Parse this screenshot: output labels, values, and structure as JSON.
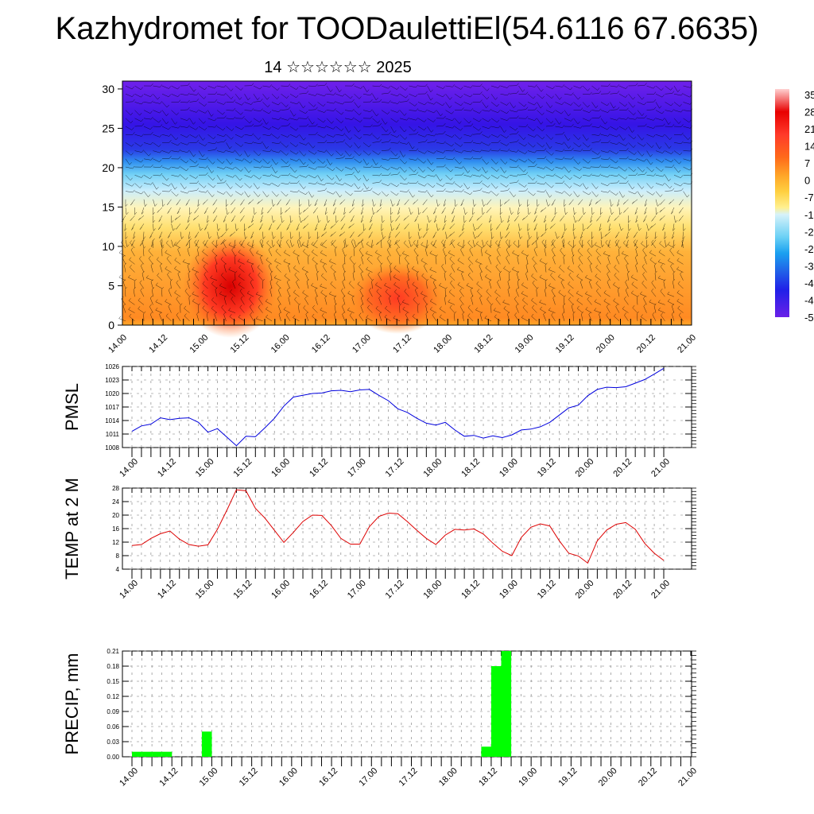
{
  "header": {
    "title": "Kazhydromet for TOODaulettiEl(54.6116 67.6635)",
    "subtitle": "14 ☆☆☆☆☆☆ 2025"
  },
  "chart_data": [
    {
      "type": "heatmap",
      "y_ticks": [
        "0",
        "5",
        "10",
        "15",
        "20",
        "25",
        "30"
      ],
      "ylim": [
        0,
        31
      ],
      "x_ticks": [
        "14.00",
        "14.12",
        "15.00",
        "15.12",
        "16.00",
        "16.12",
        "17.00",
        "17.12",
        "18.00",
        "18.12",
        "19.00",
        "19.12",
        "20.00",
        "20.12",
        "21.00"
      ],
      "colorbar_labels": [
        "35",
        "28",
        "21",
        "14",
        "7",
        "0",
        "-7",
        "-1",
        "-2",
        "-2",
        "-3",
        "-4",
        "-4",
        "-5"
      ],
      "colorbar_colors": [
        "#ffd0d0",
        "#e80000",
        "#ff3a2a",
        "#ff6a1a",
        "#ffa628",
        "#ffd040",
        "#fff090",
        "#d6f2fa",
        "#6ad0f5",
        "#1aa0f0",
        "#2060e8",
        "#2020e8",
        "#4010e8",
        "#6a20e8"
      ],
      "grid": "wind barbs overlaid"
    },
    {
      "type": "line",
      "ylabel": "PMSL",
      "y_ticks": [
        1008,
        1011,
        1014,
        1017,
        1020,
        1023,
        1026
      ],
      "ylim": [
        1008,
        1026
      ],
      "x_ticks": [
        "14.00",
        "14.12",
        "15.00",
        "15.12",
        "16.00",
        "16.12",
        "17.00",
        "17.12",
        "18.00",
        "18.12",
        "19.00",
        "19.12",
        "20.00",
        "20.12",
        "21.00"
      ],
      "color": "#0000dd",
      "series": [
        {
          "values": [
            1011.6,
            1012.8,
            1013.2,
            1014.6,
            1014.2,
            1014.5,
            1014.6,
            1013.6,
            1011.4,
            1012.2,
            1010.3,
            1008.4,
            1010.5,
            1010.4,
            1012.4,
            1014.5,
            1017.2,
            1019.2,
            1019.6,
            1020.0,
            1020.1,
            1020.6,
            1020.7,
            1020.4,
            1020.8,
            1020.9,
            1019.6,
            1018.4,
            1016.6,
            1015.8,
            1014.5,
            1013.4,
            1013.0,
            1013.6,
            1011.9,
            1010.5,
            1010.7,
            1010.1,
            1010.6,
            1010.2,
            1010.8,
            1011.9,
            1012.1,
            1012.6,
            1013.6,
            1015.2,
            1016.8,
            1017.4,
            1019.5,
            1020.9,
            1021.4,
            1021.3,
            1021.5,
            1022.3,
            1023.1,
            1024.3,
            1025.6
          ]
        }
      ]
    },
    {
      "type": "line",
      "ylabel": "TEMP at 2 M",
      "y_ticks": [
        4,
        8,
        12,
        16,
        20,
        24,
        28
      ],
      "ylim": [
        4,
        28
      ],
      "x_ticks": [
        "14.00",
        "14.12",
        "15.00",
        "15.12",
        "16.00",
        "16.12",
        "17.00",
        "17.12",
        "18.00",
        "18.12",
        "19.00",
        "19.12",
        "20.00",
        "20.12",
        "21.00"
      ],
      "color": "#dd0000",
      "series": [
        {
          "values": [
            11.0,
            11.3,
            13.1,
            14.5,
            15.3,
            12.9,
            11.3,
            10.8,
            11.2,
            15.8,
            21.5,
            27.5,
            27.2,
            22.0,
            19.1,
            15.5,
            11.9,
            14.9,
            18.1,
            20.0,
            19.9,
            16.9,
            13.1,
            11.4,
            11.4,
            16.6,
            19.6,
            20.6,
            20.4,
            18.1,
            15.5,
            13.1,
            11.3,
            14.1,
            15.8,
            15.6,
            15.9,
            14.4,
            11.7,
            9.3,
            8.0,
            13.4,
            16.4,
            17.4,
            16.8,
            12.4,
            8.7,
            7.9,
            5.8,
            12.4,
            15.6,
            17.3,
            17.8,
            15.8,
            11.6,
            8.7,
            6.6
          ]
        }
      ]
    },
    {
      "type": "bar",
      "ylabel": "PRECIP, mm",
      "y_ticks": [
        "0.00",
        "0.03",
        "0.06",
        "0.09",
        "0.12",
        "0.15",
        "0.18",
        "0.21"
      ],
      "ylim": [
        0,
        0.21
      ],
      "x_ticks": [
        "14.00",
        "14.12",
        "15.00",
        "15.12",
        "16.00",
        "16.12",
        "17.00",
        "17.12",
        "18.00",
        "18.12",
        "19.00",
        "19.12",
        "20.00",
        "20.12",
        "21.00"
      ],
      "color": "#00ff00",
      "bars": [
        {
          "x": 0,
          "value": 0.01
        },
        {
          "x": 1,
          "value": 0.01
        },
        {
          "x": 2,
          "value": 0.01
        },
        {
          "x": 3,
          "value": 0.01
        },
        {
          "x": 7,
          "value": 0.05
        },
        {
          "x": 35,
          "value": 0.02
        },
        {
          "x": 36,
          "value": 0.18
        },
        {
          "x": 37,
          "value": 0.21
        }
      ]
    }
  ]
}
